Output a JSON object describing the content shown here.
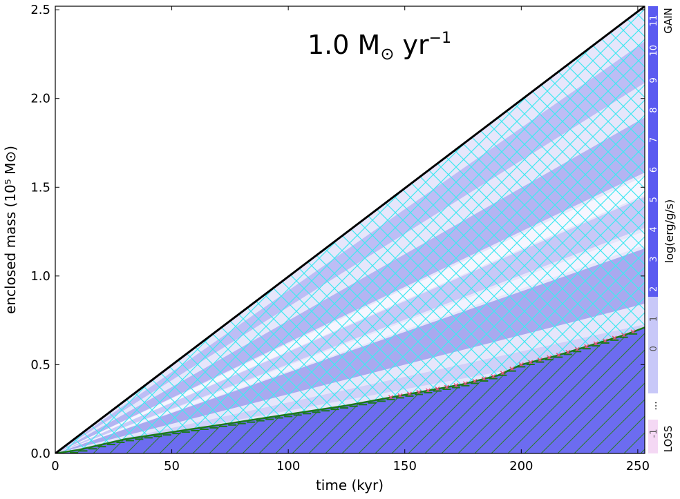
{
  "chart_data": {
    "type": "area",
    "title": "1.0 M⊙ yr⁻¹",
    "title_parts": {
      "main": "1.0 M",
      "sub": "⊙",
      "unit": " yr",
      "sup": "−1"
    },
    "xlabel": "time (kyr)",
    "ylabel": "enclosed mass (10⁵ M⊙)",
    "xlim": [
      0,
      253
    ],
    "ylim": [
      0,
      2.52
    ],
    "xticks": [
      0,
      50,
      100,
      150,
      200,
      250
    ],
    "yticks": [
      0.0,
      0.5,
      1.0,
      1.5,
      2.0,
      2.5
    ],
    "xtick_labels": [
      "0",
      "50",
      "100",
      "150",
      "200",
      "250"
    ],
    "ytick_labels": [
      "0.0",
      "0.5",
      "1.0",
      "1.5",
      "2.0",
      "2.5"
    ],
    "total_mass_line": {
      "x": [
        0,
        253
      ],
      "y": [
        0,
        2.52
      ],
      "color": "#000000"
    },
    "core_boundary": {
      "x": [
        0,
        10,
        20,
        30,
        50,
        75,
        100,
        125,
        150,
        175,
        190,
        200,
        215,
        230,
        245,
        253
      ],
      "y": [
        0,
        0.02,
        0.05,
        0.08,
        0.12,
        0.17,
        0.22,
        0.27,
        0.33,
        0.39,
        0.44,
        0.5,
        0.55,
        0.61,
        0.67,
        0.71
      ]
    },
    "colorbar": {
      "label": "log(erg/g/s)",
      "gain_label": "GAIN",
      "loss_label": "LOSS",
      "ellipsis": "...",
      "ticks": [
        "11",
        "10",
        "9",
        "8",
        "7",
        "6",
        "5",
        "4",
        "3",
        "2",
        "1",
        "0",
        "-1"
      ],
      "gain_color": "#5a5af0",
      "loss_color": "#f4d8f4"
    },
    "hatch_cross_color": "#40e8f0",
    "hatch_diag_color": "#2e7a2e",
    "marker_color": "#1a7a1a",
    "x_marker_color": "#e8507a",
    "grid": false
  }
}
